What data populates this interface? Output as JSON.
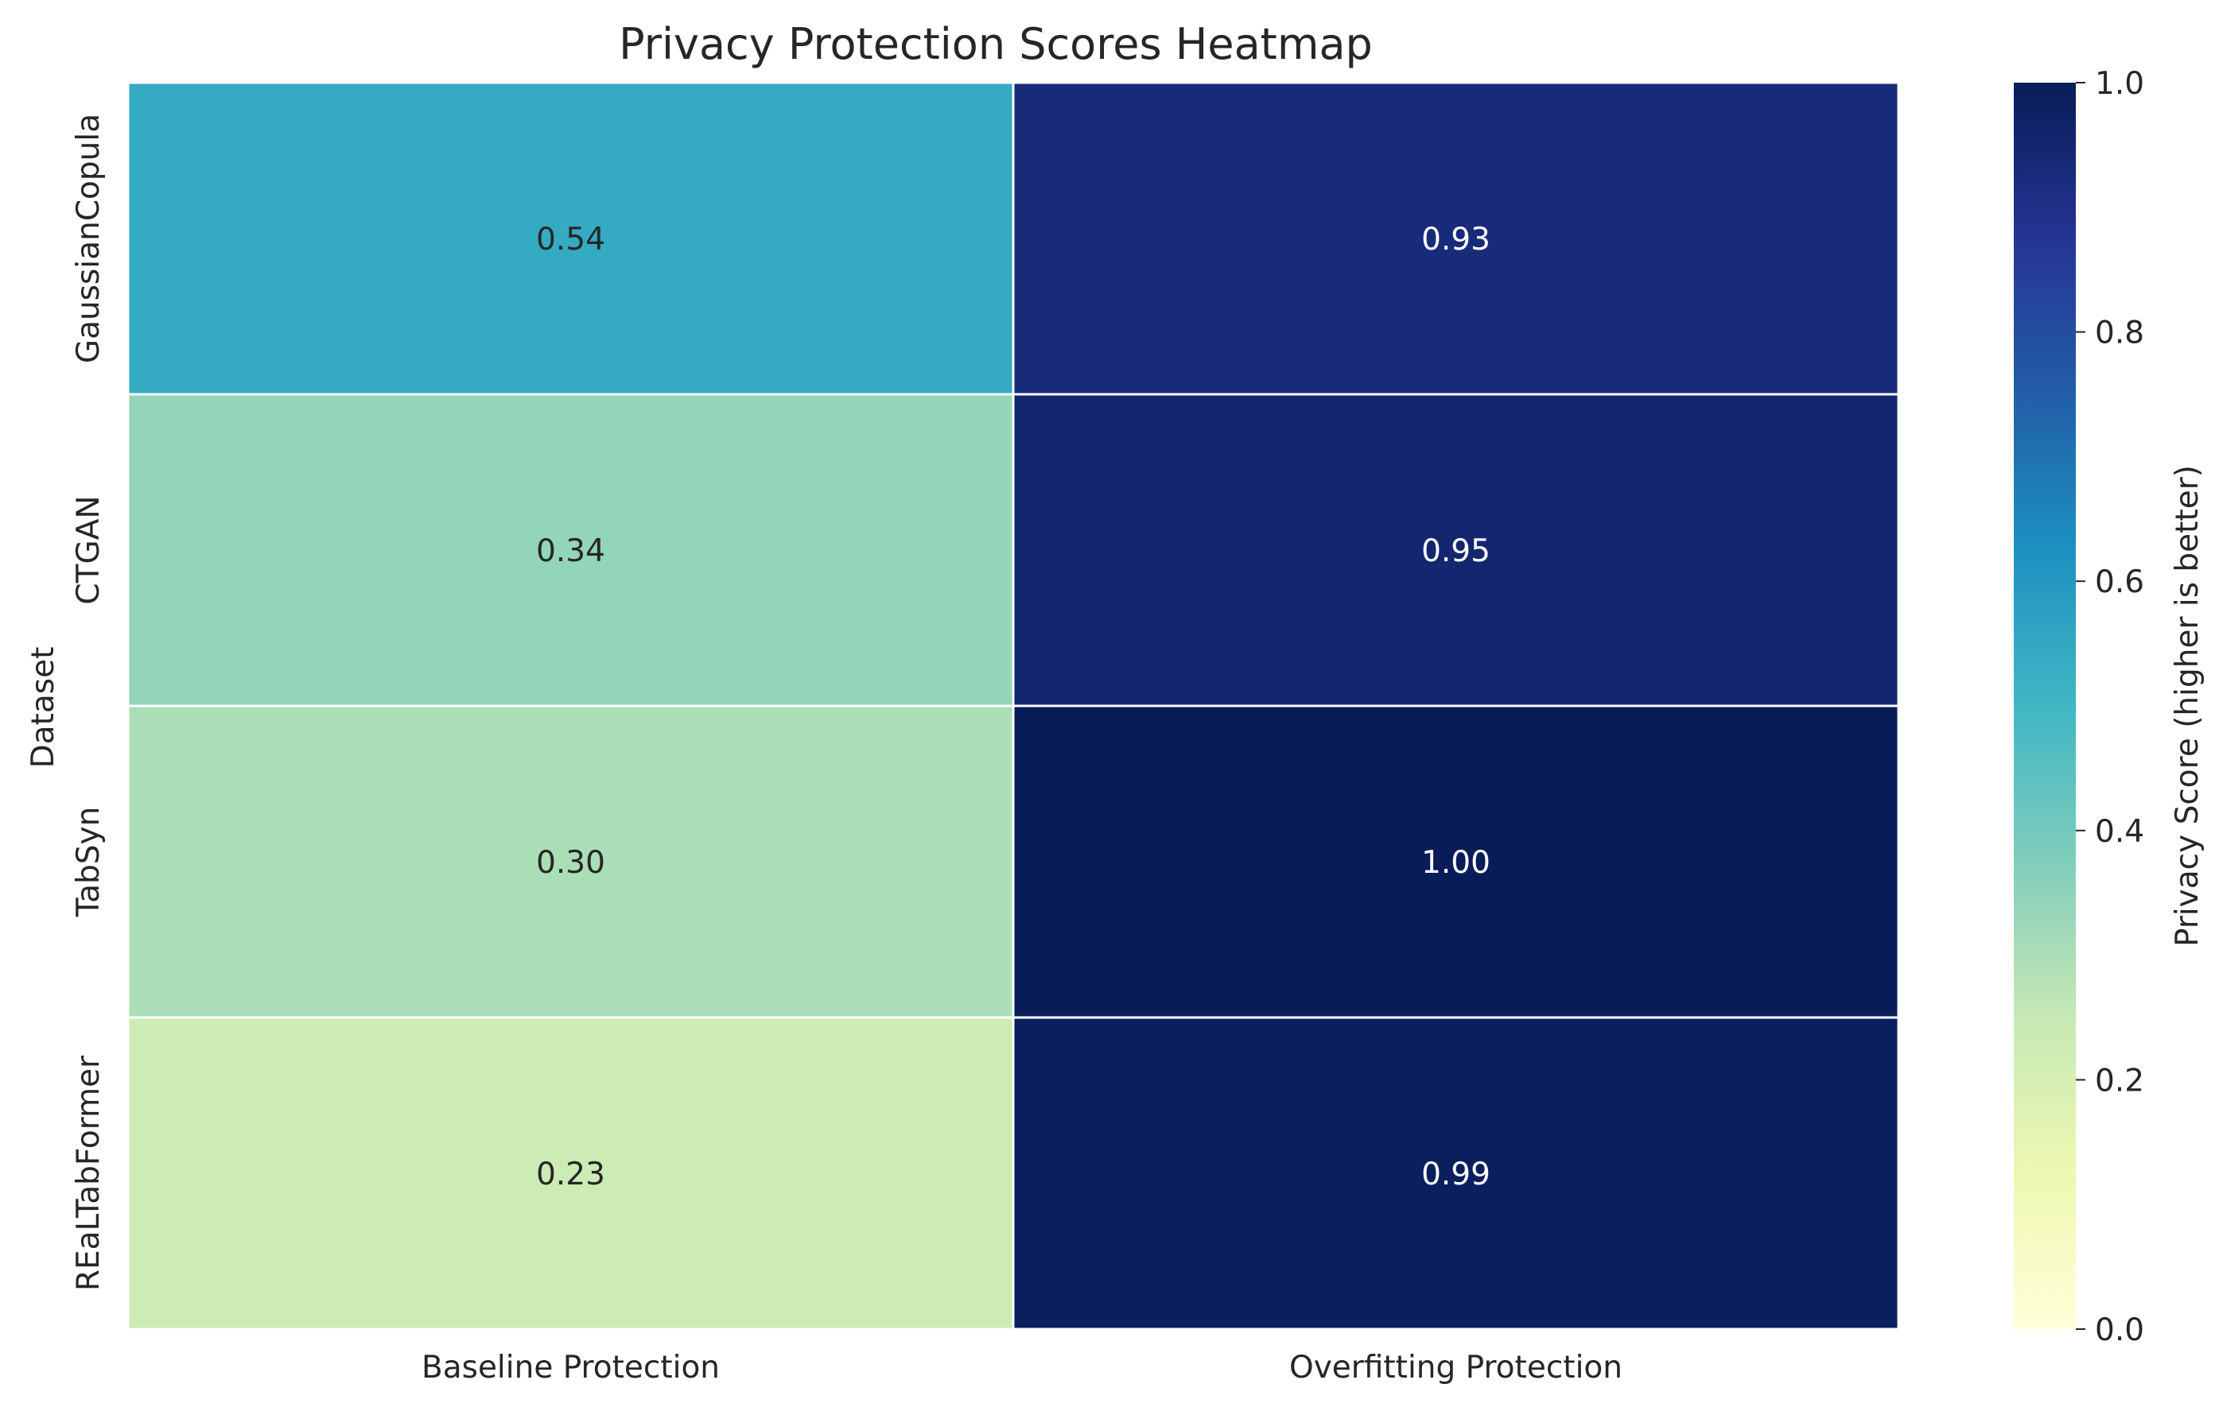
{
  "chart_data": {
    "type": "heatmap",
    "title": "Privacy Protection Scores Heatmap",
    "xlabel": "",
    "ylabel": "Dataset",
    "columns": [
      "Baseline Protection",
      "Overfitting Protection"
    ],
    "rows": [
      "GaussianCopula",
      "CTGAN",
      "TabSyn",
      "REaLTabFormer"
    ],
    "values": [
      [
        0.54,
        0.93
      ],
      [
        0.34,
        0.95
      ],
      [
        0.3,
        1.0
      ],
      [
        0.23,
        0.99
      ]
    ],
    "value_format": "2 decimals",
    "colormap": "YlGnBu",
    "vmin": 0.0,
    "vmax": 1.0,
    "colorbar": {
      "label": "Privacy Score (higher is better)",
      "ticks": [
        "0.0",
        "0.2",
        "0.4",
        "0.6",
        "0.8",
        "1.0"
      ]
    },
    "grid": false,
    "cell_border_color": "#ffffff"
  }
}
